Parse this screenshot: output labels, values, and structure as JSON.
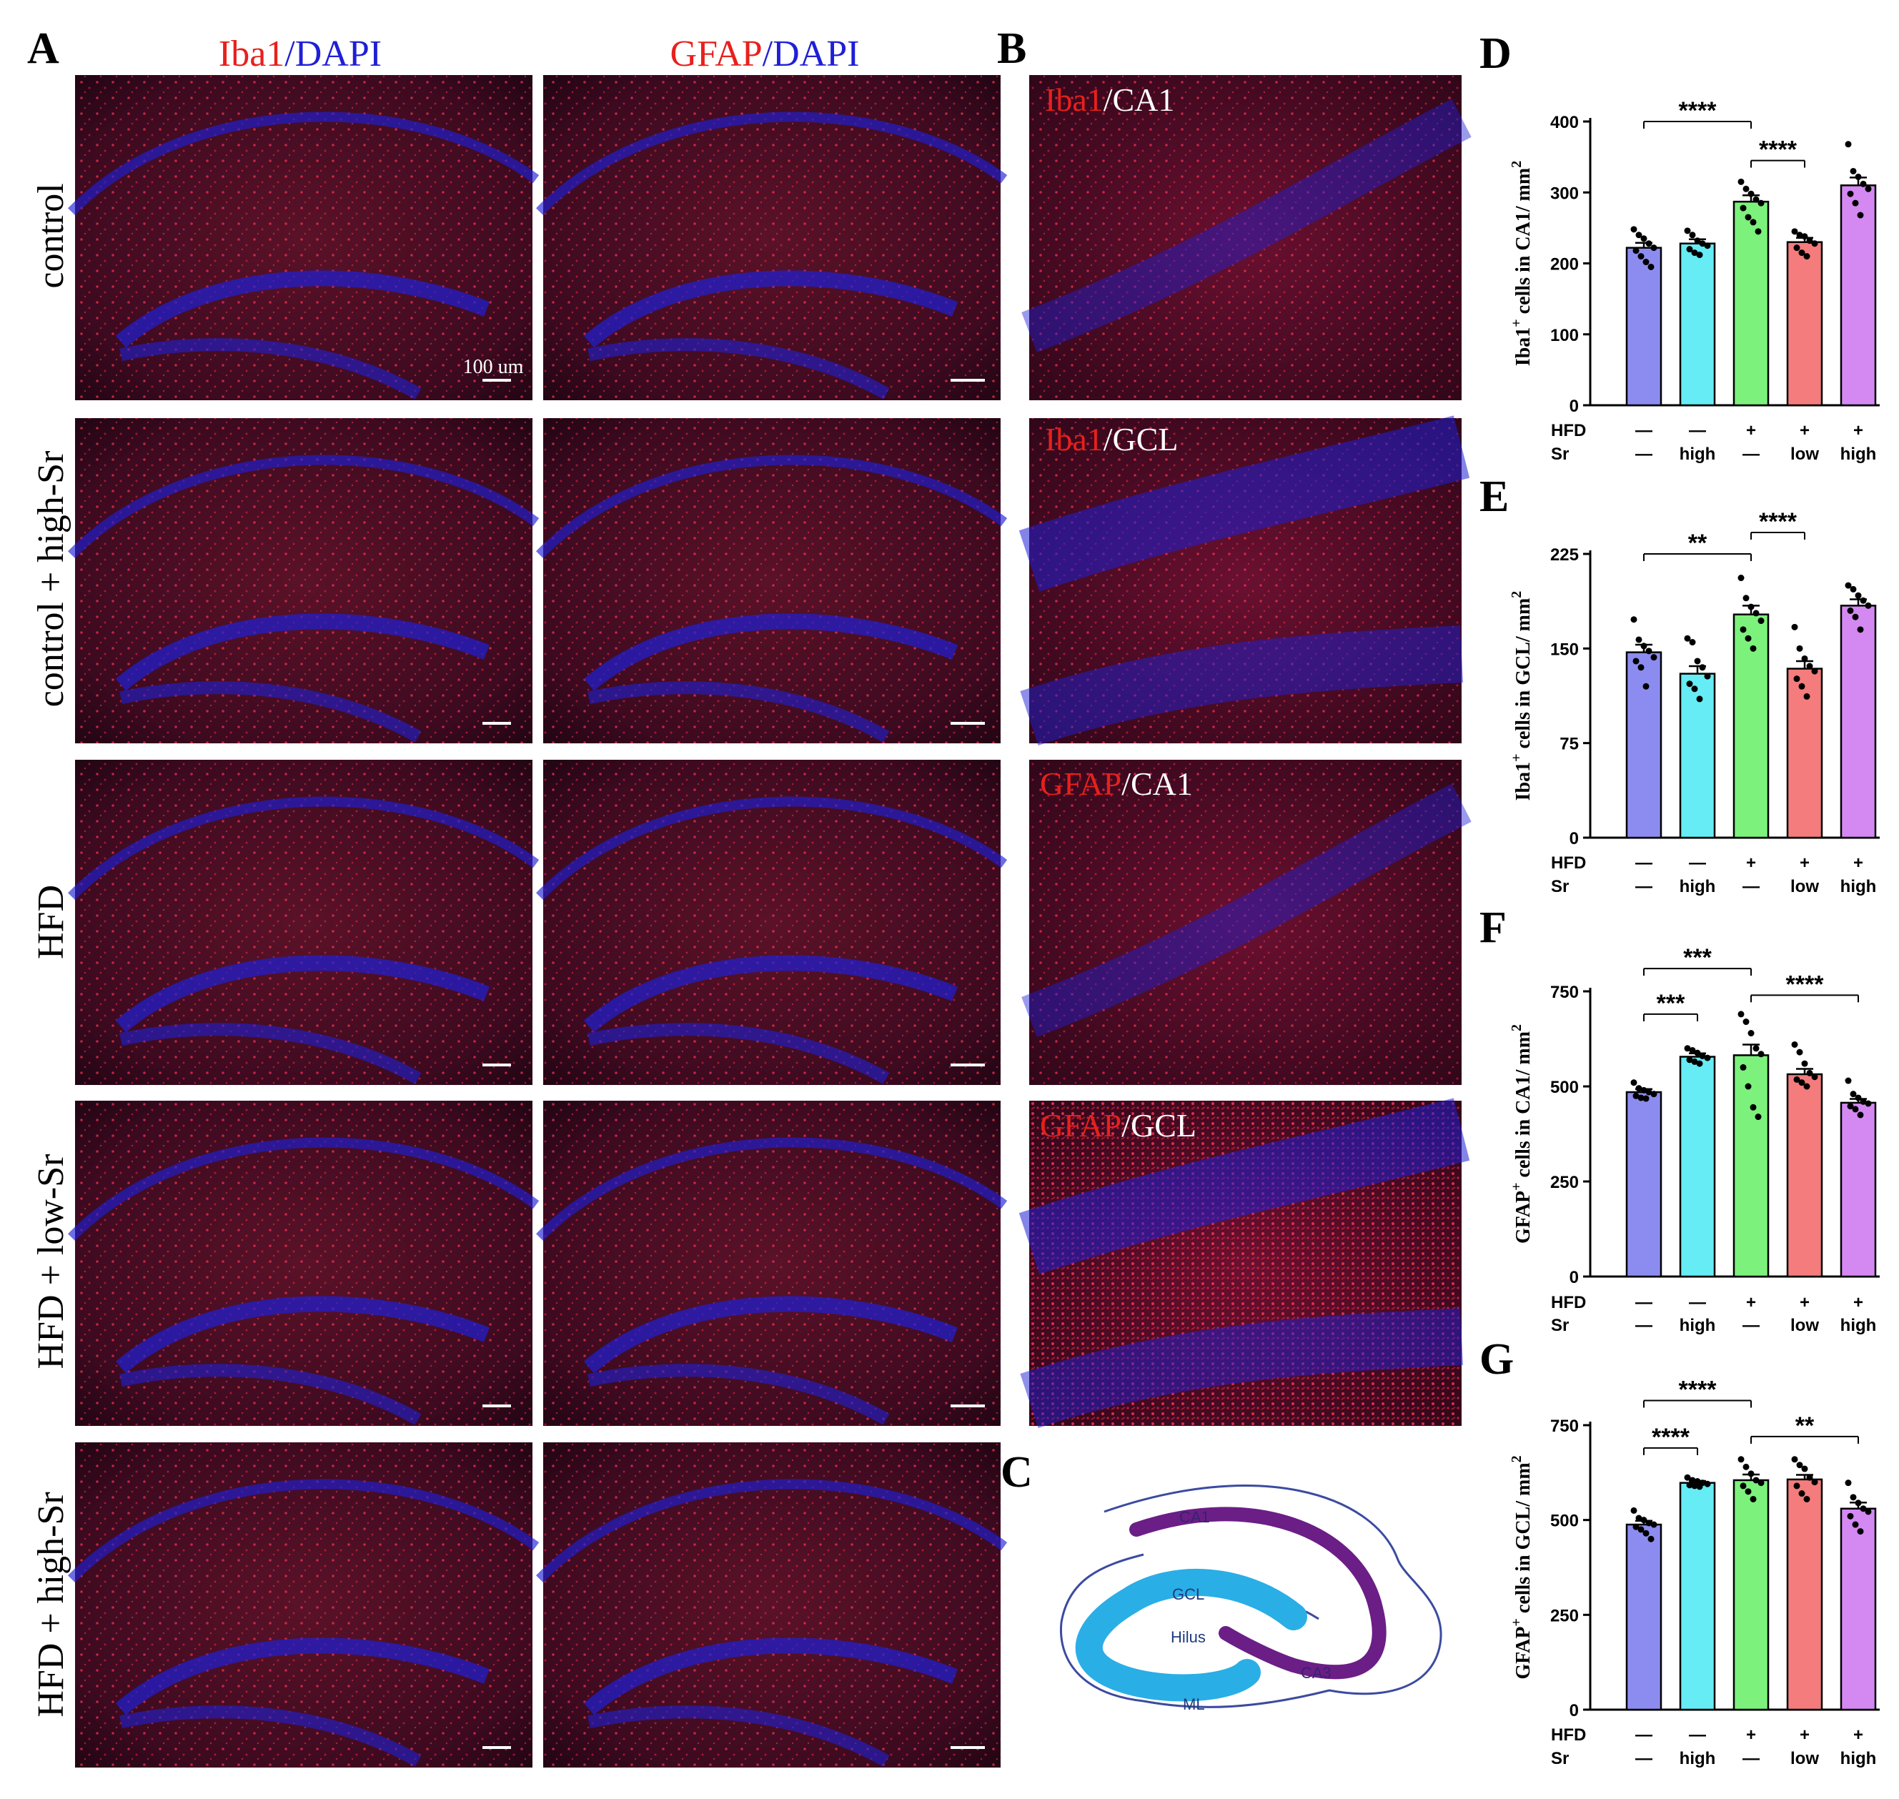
{
  "panel_letters": {
    "A": "A",
    "B": "B",
    "C": "C",
    "D": "D",
    "E": "E",
    "F": "F",
    "G": "G"
  },
  "col_headers": [
    {
      "marker": "Iba1",
      "sep": "/",
      "stain": "DAPI"
    },
    {
      "marker": "GFAP",
      "sep": "/",
      "stain": "DAPI"
    }
  ],
  "row_labels": [
    "control",
    "control + high-Sr",
    "HFD",
    "HFD + low-Sr",
    "HFD + high-Sr"
  ],
  "scale_bar_label": "100 um",
  "insets": [
    {
      "marker": "Iba1",
      "sep": "/",
      "region": "CA1"
    },
    {
      "marker": "Iba1",
      "sep": "/",
      "region": "GCL"
    },
    {
      "marker": "GFAP",
      "sep": "/",
      "region": "CA1"
    },
    {
      "marker": "GFAP",
      "sep": "/",
      "region": "GCL"
    }
  ],
  "diagram_labels": [
    "CA1",
    "GCL",
    "Hilus",
    "CA3",
    "ML"
  ],
  "colors": {
    "marker_red": "#e8201c",
    "dapi_blue": "#1f1fd6",
    "bar_colors": [
      "#8c8cf0",
      "#66ecf4",
      "#7cf27c",
      "#f47c7c",
      "#d489f2"
    ],
    "ca_purple": "#6b1e86",
    "gcl_cyan": "#2aaee6"
  },
  "condition_rows": {
    "hfd_label": "HFD",
    "sr_label": "Sr",
    "hfd": [
      "—",
      "—",
      "+",
      "+",
      "+"
    ],
    "sr": [
      "—",
      "high",
      "—",
      "low",
      "high"
    ]
  },
  "chart_data": [
    {
      "type": "bar",
      "panel": "D",
      "ylabel_pre": "Iba1",
      "ylabel_sup": "+",
      "ylabel_post": " cells in CA1/ mm",
      "ylabel_sup2": "2",
      "ylim": [
        0,
        400
      ],
      "yticks": [
        "0",
        "100",
        "200",
        "300",
        "400"
      ],
      "tickvals": [
        0,
        100,
        200,
        300,
        400
      ],
      "values": [
        222,
        228,
        287,
        230,
        310
      ],
      "sem": [
        7,
        6,
        9,
        6,
        11
      ],
      "points": [
        [
          248,
          240,
          235,
          228,
          222,
          218,
          210,
          202,
          195
        ],
        [
          246,
          240,
          232,
          228,
          225,
          220,
          215,
          212
        ],
        [
          315,
          305,
          298,
          290,
          285,
          278,
          265,
          258,
          245
        ],
        [
          245,
          240,
          238,
          232,
          228,
          222,
          215,
          210
        ],
        [
          368,
          330,
          322,
          312,
          305,
          298,
          285,
          268
        ]
      ],
      "sig": [
        {
          "from": 0,
          "to": 2,
          "label": "****",
          "level": 400
        },
        {
          "from": 2,
          "to": 3,
          "label": "****",
          "level": 345
        }
      ]
    },
    {
      "type": "bar",
      "panel": "E",
      "ylabel_pre": "Iba1",
      "ylabel_sup": "+",
      "ylabel_post": " cells in GCL/ mm",
      "ylabel_sup2": "2",
      "ylim": [
        0,
        225
      ],
      "yticks": [
        "0",
        "75",
        "150",
        "225"
      ],
      "tickvals": [
        0,
        75,
        150,
        225
      ],
      "values": [
        147,
        130,
        177,
        134,
        184
      ],
      "sem": [
        6,
        6,
        7,
        6,
        5
      ],
      "points": [
        [
          173,
          157,
          152,
          148,
          143,
          140,
          135,
          120
        ],
        [
          158,
          155,
          140,
          135,
          128,
          122,
          118,
          110
        ],
        [
          206,
          190,
          183,
          178,
          172,
          165,
          158,
          150
        ],
        [
          167,
          150,
          142,
          136,
          132,
          126,
          120,
          112
        ],
        [
          200,
          197,
          192,
          188,
          184,
          180,
          175,
          165
        ]
      ],
      "sig": [
        {
          "from": 0,
          "to": 2,
          "label": "**",
          "level": 225
        },
        {
          "from": 2,
          "to": 3,
          "label": "****",
          "level": 242
        }
      ]
    },
    {
      "type": "bar",
      "panel": "F",
      "ylabel_pre": "GFAP",
      "ylabel_sup": "+",
      "ylabel_post": " cells in CA1/ mm",
      "ylabel_sup2": "2",
      "ylim": [
        0,
        750
      ],
      "yticks": [
        "0",
        "250",
        "500",
        "750"
      ],
      "tickvals": [
        0,
        250,
        500,
        750
      ],
      "values": [
        485,
        578,
        582,
        532,
        457
      ],
      "sem": [
        8,
        9,
        28,
        14,
        10
      ],
      "points": [
        [
          510,
          495,
          490,
          485,
          480,
          475,
          470,
          468
        ],
        [
          600,
          595,
          588,
          580,
          575,
          570,
          565,
          560
        ],
        [
          690,
          670,
          640,
          600,
          585,
          550,
          500,
          445,
          420
        ],
        [
          610,
          590,
          560,
          535,
          525,
          518,
          510,
          500
        ],
        [
          515,
          480,
          470,
          460,
          455,
          448,
          440,
          425
        ]
      ],
      "sig": [
        {
          "from": 0,
          "to": 1,
          "label": "***",
          "level": 690
        },
        {
          "from": 0,
          "to": 2,
          "label": "***",
          "level": 810
        },
        {
          "from": 2,
          "to": 4,
          "label": "****",
          "level": 740
        }
      ]
    },
    {
      "type": "bar",
      "panel": "G",
      "ylabel_pre": "GFAP",
      "ylabel_sup": "+",
      "ylabel_post": " cells in GCL/ mm",
      "ylabel_sup2": "2",
      "ylim": [
        0,
        750
      ],
      "yticks": [
        "0",
        "250",
        "500",
        "750"
      ],
      "tickvals": [
        0,
        250,
        500,
        750
      ],
      "values": [
        488,
        598,
        605,
        607,
        530
      ],
      "sem": [
        10,
        5,
        15,
        12,
        16
      ],
      "points": [
        [
          525,
          505,
          500,
          492,
          488,
          482,
          475,
          465,
          450
        ],
        [
          612,
          605,
          602,
          598,
          595,
          592,
          590,
          588
        ],
        [
          660,
          640,
          622,
          605,
          598,
          590,
          575,
          555
        ],
        [
          660,
          645,
          635,
          612,
          600,
          590,
          570,
          555
        ],
        [
          598,
          560,
          545,
          530,
          522,
          510,
          488,
          470
        ]
      ],
      "sig": [
        {
          "from": 0,
          "to": 1,
          "label": "****",
          "level": 690
        },
        {
          "from": 0,
          "to": 2,
          "label": "****",
          "level": 815
        },
        {
          "from": 2,
          "to": 4,
          "label": "**",
          "level": 720
        }
      ]
    }
  ]
}
